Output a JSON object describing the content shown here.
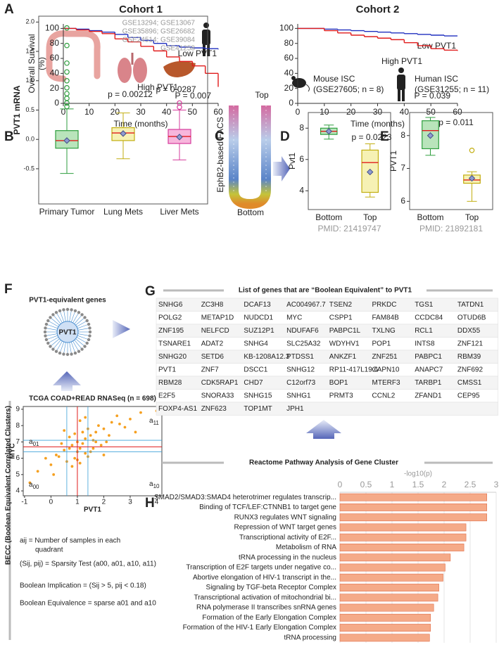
{
  "panel_labels": [
    "A",
    "B",
    "C",
    "D",
    "E",
    "F",
    "G",
    "H"
  ],
  "panel_c": {
    "top": "Top",
    "bottom": "Bottom",
    "label": "EphB2-based FACS"
  },
  "panel_f": {
    "title": "PVT1-equivalent genes",
    "center": "PVT1",
    "side_label": "BECC (Boolean Equivalent Correlated Clusters)",
    "legend_lines": [
      "aij = Number of samples in each",
      "quadrant",
      "(Sij, pij) = Sparsity Test (a00, a01, a10, a11)",
      "Boolean Implication = (Sij > 5, pij < 0.18)",
      "Boolean Equivalence = sparse a01 and a10"
    ]
  },
  "gene_table": {
    "title": "List of genes that are “Boolean Equivalent” to PVT1",
    "highlight": "MYC",
    "highlight_color": "#d04a1c",
    "rows": [
      [
        "SNHG6",
        "ZC3H8",
        "DCAF13",
        "AC004967.7",
        "TSEN2",
        "PRKDC",
        "TGS1",
        "TATDN1"
      ],
      [
        "POLG2",
        "METAP1D",
        "NUDCD1",
        "MYC",
        "CSPP1",
        "FAM84B",
        "CCDC84",
        "OTUD6B"
      ],
      [
        "ZNF195",
        "NELFCD",
        "SUZ12P1",
        "NDUFAF6",
        "PABPC1L",
        "TXLNG",
        "RCL1",
        "DDX55"
      ],
      [
        "TSNARE1",
        "ADAT2",
        "SNHG4",
        "SLC25A32",
        "WDYHV1",
        "POP1",
        "INTS8",
        "ZNF121"
      ],
      [
        "SNHG20",
        "SETD6",
        "KB-1208A12.3",
        "PTDSS1",
        "ANKZF1",
        "ZNF251",
        "PABPC1",
        "RBM39"
      ],
      [
        "PVT1",
        "ZNF7",
        "DSCC1",
        "SNHG12",
        "RP11-417L19.6",
        "CAPN10",
        "ANAPC7",
        "ZNF692"
      ],
      [
        "RBM28",
        "CDK5RAP1",
        "CHD7",
        "C12orf73",
        "BOP1",
        "MTERF3",
        "TARBP1",
        "CMSS1"
      ],
      [
        "E2F5",
        "SNORA33",
        "SNHG15",
        "SNHG1",
        "PRMT3",
        "CCNL2",
        "ZFAND1",
        "CEP95"
      ],
      [
        "FOXP4-AS1",
        "ZNF623",
        "TOP1MT",
        "JPH1"
      ]
    ]
  },
  "chart_data": [
    {
      "type": "line",
      "title": "Cohort 1",
      "xlabel": "Time (months)",
      "ylabel": [
        "Overall Survival",
        "(%)"
      ],
      "x": [
        0,
        5,
        10,
        15,
        20,
        25,
        30,
        35,
        40,
        45,
        50,
        55,
        60
      ],
      "xlim": [
        0,
        60
      ],
      "xticks": [
        0,
        10,
        20,
        30,
        40,
        50,
        60
      ],
      "ylim": [
        0,
        106
      ],
      "yticks": [
        0,
        20,
        40,
        60,
        80,
        100
      ],
      "series": [
        {
          "name": "Low PVT1",
          "color": "#1f2fbf",
          "values": [
            100,
            99,
            97,
            95,
            92,
            88,
            84,
            80,
            77,
            75,
            74,
            73,
            72
          ]
        },
        {
          "name": "High PVT1",
          "color": "#e01b1b",
          "values": [
            100,
            98,
            96,
            93,
            86,
            82,
            76,
            70,
            62,
            56,
            50,
            40,
            22
          ]
        }
      ],
      "annotations": [
        "P = 0.007"
      ]
    },
    {
      "type": "line",
      "title": "Cohort 2",
      "xlabel": "Time (months)",
      "x": [
        0,
        5,
        10,
        15,
        20,
        25,
        30,
        35,
        40,
        45,
        50,
        55,
        60
      ],
      "xlim": [
        0,
        60
      ],
      "xticks": [
        0,
        10,
        20,
        30,
        40,
        50,
        60
      ],
      "ylim": [
        0,
        106
      ],
      "yticks": [
        0,
        20,
        40,
        60,
        80,
        100
      ],
      "series": [
        {
          "name": "Low PVT1",
          "color": "#1f2fbf",
          "values": [
            100,
            100,
            99,
            98,
            97,
            96,
            95,
            94,
            93,
            92,
            91,
            90,
            90
          ]
        },
        {
          "name": "High PVT1",
          "color": "#e01b1b",
          "values": [
            100,
            100,
            97,
            94,
            91,
            89,
            87,
            85,
            81,
            77,
            73,
            71,
            70
          ]
        }
      ],
      "annotations": [
        "P = 0.039"
      ]
    },
    {
      "type": "box",
      "ylabel": "PVT1 mRNA",
      "note": [
        "GSE13294; GSE13067",
        "GSE35896; GSE26682",
        "GSE24514; GSE39084",
        "GSE41258"
      ],
      "categories": [
        "Primary Tumor",
        "Lung Mets",
        "Liver Mets"
      ],
      "ylim": [
        -1.1,
        2.1
      ],
      "yticks": [
        {
          "value": -0.5,
          "label": "-0.5"
        },
        {
          "value": 0,
          "label": "0.0"
        },
        {
          "value": 0.5,
          "label": "0.5"
        },
        {
          "value": 1,
          "label": "1.0"
        },
        {
          "value": 1.5,
          "label": "1.5"
        },
        {
          "value": 2,
          "label": "2.0"
        }
      ],
      "boxes": [
        {
          "min": -0.58,
          "q1": -0.15,
          "median": -0.02,
          "q3": 0.15,
          "max": 0.52,
          "mean": -0.02,
          "outliers": [
            0.56,
            0.62,
            0.7,
            0.78,
            0.88,
            1.0,
            1.15,
            1.3,
            1.6,
            1.9
          ],
          "color": "#2e9e3e",
          "fill": "#b9e4bb"
        },
        {
          "min": -0.33,
          "q1": -0.02,
          "median": 0.11,
          "q3": 0.2,
          "max": 0.45,
          "mean": 0.1,
          "outliers": [],
          "color": "#c2ae10",
          "fill": "#f6f1b4"
        },
        {
          "min": -0.35,
          "q1": -0.07,
          "median": 0.05,
          "q3": 0.17,
          "max": 0.5,
          "mean": 0.04,
          "outliers": [
            0.55,
            0.62
          ],
          "color": "#d63c9c",
          "fill": "#f7b6dc"
        }
      ],
      "annotations": [
        "p = 0.00212",
        "p = 0.0287"
      ]
    },
    {
      "type": "box",
      "title": "Mouse ISC",
      "subtitle": "(GSE27605; n = 8)",
      "ylabel": "Pvt1",
      "footer": "PMID: 21419747",
      "categories": [
        "Bottom",
        "Top"
      ],
      "ylim": [
        2.8,
        9.0
      ],
      "yticks": [
        4,
        6,
        8
      ],
      "boxes": [
        {
          "min": 7.3,
          "q1": 7.6,
          "median": 7.8,
          "q3": 8.0,
          "max": 8.2,
          "mean": 7.8,
          "outliers": [],
          "color": "#2e9e3e",
          "fill": "#b9e4bb"
        },
        {
          "min": 3.6,
          "q1": 3.9,
          "median": 5.8,
          "q3": 6.6,
          "max": 7.0,
          "mean": 5.2,
          "outliers": [],
          "color": "#c2ae10",
          "fill": "#f6f1b4"
        }
      ],
      "annotations": [
        "p = 0.0223"
      ]
    },
    {
      "type": "box",
      "title": "Human ISC",
      "subtitle": "(GSE31255; n = 11)",
      "ylabel": "PVT1",
      "footer": "PMID: 21892181",
      "categories": [
        "Bottom",
        "Top"
      ],
      "ylim": [
        5.75,
        8.7
      ],
      "yticks": [
        6,
        7,
        8
      ],
      "boxes": [
        {
          "min": 7.4,
          "q1": 7.6,
          "median": 8.15,
          "q3": 8.45,
          "max": 8.55,
          "mean": 8.0,
          "outliers": [],
          "color": "#2e9e3e",
          "fill": "#b9e4bb"
        },
        {
          "min": 6.0,
          "q1": 6.55,
          "median": 6.65,
          "q3": 6.8,
          "max": 6.9,
          "mean": 6.7,
          "outliers": [
            7.55
          ],
          "color": "#c2ae10",
          "fill": "#f6f1b4"
        }
      ],
      "annotations": [
        "p = 0.011"
      ]
    },
    {
      "type": "scatter",
      "title": "TCGA COAD+READ RNASeq (n = 698)",
      "xlabel": "PVT1",
      "ylabel": "MYC",
      "color": "#f5a020",
      "xlim": [
        -1.05,
        4.2
      ],
      "xticks": [
        -1,
        0,
        1,
        2,
        3,
        4
      ],
      "ylim": [
        3.7,
        9.17
      ],
      "yticks": [
        4,
        5,
        6,
        7,
        8,
        9
      ],
      "x": [
        0.2,
        0.5,
        0.8,
        1.0,
        1.1,
        1.3,
        1.5,
        1.7,
        2.0,
        2.3,
        0.9,
        1.2,
        1.4,
        0.6,
        1.8,
        2.5,
        3.0,
        3.4,
        4.0,
        -0.5,
        -0.8,
        0.0,
        0.3,
        0.7,
        1.0,
        1.6,
        2.1,
        2.8,
        1.1,
        1.3,
        0.4,
        0.9,
        1.5,
        1.9,
        2.2,
        0.1,
        -0.2,
        1.2,
        1.0,
        0.8,
        1.4,
        1.7,
        2.6,
        3.2,
        0.5,
        1.1,
        1.6,
        0.7,
        1.3,
        2.0
      ],
      "values": [
        6.2,
        6.5,
        6.8,
        7.0,
        6.6,
        7.2,
        7.4,
        7.6,
        7.8,
        8.2,
        6.0,
        6.9,
        7.8,
        5.8,
        8.0,
        8.6,
        8.4,
        8.8,
        8.9,
        5.2,
        4.5,
        5.6,
        6.1,
        7.3,
        5.9,
        7.1,
        7.0,
        7.9,
        8.3,
        6.3,
        6.9,
        7.5,
        6.4,
        6.8,
        7.4,
        5.0,
        6.0,
        7.6,
        6.4,
        5.5,
        6.1,
        7.0,
        8.1,
        7.6,
        7.7,
        5.7,
        6.6,
        6.6,
        8.5,
        6.2
      ],
      "threshold": {
        "x": 1.0,
        "y": 6.7,
        "color": "#e01b1b"
      },
      "bands": {
        "x": [
          0.6,
          1.4
        ],
        "y": [
          6.4,
          7.1
        ],
        "color": "#3aa0d8"
      },
      "quadrants": [
        {
          "letter": "a",
          "index": "01"
        },
        {
          "letter": "a",
          "index": "11"
        },
        {
          "letter": "a",
          "index": "00"
        },
        {
          "letter": "a",
          "index": "10"
        }
      ]
    },
    {
      "type": "hbar",
      "title": "Reactome Pathway Analysis of Gene Cluster",
      "xlabel": "-log10(p)",
      "color": "#f5aa88",
      "edge": "#e0704c",
      "highlight_color": "#b5380e",
      "xlim": [
        0,
        3
      ],
      "xticks": [
        0,
        0.5,
        1,
        1.5,
        2,
        2.5,
        3
      ],
      "categories": [
        "SMAD2/SMAD3:SMAD4 heterotrimer regulates transcrip...",
        "Binding of TCF/LEF:CTNNB1 to target gene",
        "RUNX3 regulates WNT signaling",
        "Repression of WNT target genes",
        "Transcriptional activity of E2F...",
        "Metabolism of RNA",
        "tRNA processing in the nucleus",
        "Transcription of E2F targets under negative co...",
        "Abortive elongation of HIV-1 transcript in the...",
        "Signaling by TGF-beta Receptor Complex",
        "Transcriptional activation of mitochondrial bi...",
        "RNA polymerase II transcribes snRNA genes",
        "Formation of the Early Elongation Complex",
        "Formation of the HIV-1 Early Elongation Complex",
        "tRNA processing"
      ],
      "values": [
        2.82,
        2.82,
        2.82,
        2.42,
        2.42,
        2.38,
        2.12,
        2.02,
        1.98,
        1.9,
        1.88,
        1.8,
        1.74,
        1.74,
        1.72
      ],
      "highlighted": [
        true,
        true,
        true,
        true,
        true,
        false,
        false,
        false,
        false,
        false,
        false,
        false,
        false,
        false,
        false
      ]
    }
  ]
}
